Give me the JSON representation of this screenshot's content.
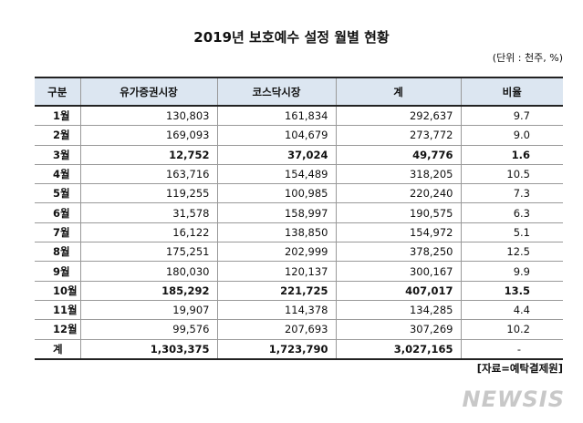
{
  "title": "2019년 보호예수 설정 월별 현황",
  "unit_note": "(단위 : 천주, %)",
  "table": {
    "header": [
      "구분",
      "유가증권시장",
      "코스닥시장",
      "계",
      "비율"
    ],
    "rows": [
      [
        "1월",
        "130,803",
        "161,834",
        "292,637",
        "9.7"
      ],
      [
        "2월",
        "169,093",
        "104,679",
        "273,772",
        "9.0"
      ],
      [
        "3월",
        "12,752",
        "37,024",
        "49,776",
        "1.6"
      ],
      [
        "4월",
        "163,716",
        "154,489",
        "318,205",
        "10.5"
      ],
      [
        "5월",
        "119,255",
        "100,985",
        "220,240",
        "7.3"
      ],
      [
        "6월",
        "31,578",
        "158,997",
        "190,575",
        "6.3"
      ],
      [
        "7월",
        "16,122",
        "138,850",
        "154,972",
        "5.1"
      ],
      [
        "8월",
        "175,251",
        "202,999",
        "378,250",
        "12.5"
      ],
      [
        "9월",
        "180,030",
        "120,137",
        "300,167",
        "9.9"
      ],
      [
        "10월",
        "185,292",
        "221,725",
        "407,017",
        "13.5"
      ],
      [
        "11월",
        "19,907",
        "114,378",
        "134,285",
        "4.4"
      ],
      [
        "12월",
        "99,576",
        "207,693",
        "307,269",
        "10.2"
      ],
      [
        "계",
        "1,303,375",
        "1,723,790",
        "3,027,165",
        "-"
      ]
    ]
  },
  "source": "[자료=예탁결제원]",
  "watermark": "NEWSIS"
}
